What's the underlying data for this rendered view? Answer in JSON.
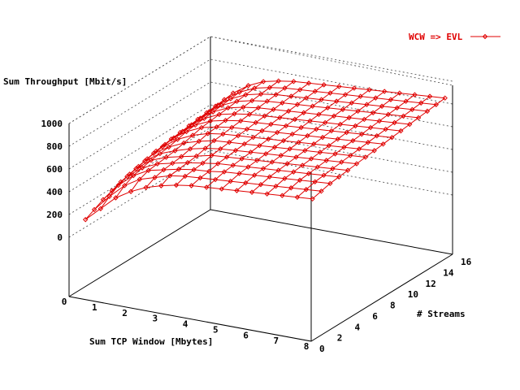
{
  "chart_data": {
    "type": "surface",
    "title": "",
    "xlabel": "Sum TCP Window [Mbytes]",
    "ylabel": "# Streams",
    "zlabel": "Sum Throughput [Mbit/s]",
    "x_ticks": [
      "0",
      "1",
      "2",
      "3",
      "4",
      "5",
      "6",
      "7",
      "8"
    ],
    "y_ticks": [
      "0",
      "2",
      "4",
      "6",
      "8",
      "10",
      "12",
      "14",
      "16"
    ],
    "z_ticks": [
      "0",
      "200",
      "400",
      "600",
      "800",
      "1000"
    ],
    "xlim": [
      0,
      8
    ],
    "ylim": [
      0,
      16
    ],
    "zlim": [
      0,
      1000
    ],
    "grid": true,
    "legend_position": "top-right",
    "series": [
      {
        "name": "WCW => EVL",
        "color": "#e00000",
        "marker": "diamond",
        "x": [
          0.25,
          0.75,
          1.25,
          1.75,
          2.25,
          2.75,
          3.25,
          3.75,
          4.25,
          4.75,
          5.25,
          5.75,
          6.25,
          6.75,
          7.25,
          7.75
        ],
        "y": [
          1,
          2,
          3,
          4,
          5,
          6,
          7,
          8,
          9,
          10,
          11,
          12,
          13,
          14,
          15,
          16
        ],
        "z": [
          [
            120,
            160,
            200,
            230,
            260,
            280,
            300,
            320,
            340,
            350,
            360,
            370,
            380,
            390,
            400,
            410
          ],
          [
            240,
            300,
            350,
            380,
            400,
            420,
            440,
            450,
            470,
            480,
            490,
            500,
            510,
            520,
            530,
            540
          ],
          [
            360,
            420,
            460,
            480,
            500,
            510,
            520,
            540,
            560,
            570,
            580,
            590,
            600,
            610,
            620,
            630
          ],
          [
            440,
            500,
            530,
            540,
            550,
            560,
            580,
            600,
            620,
            630,
            640,
            650,
            660,
            670,
            680,
            690
          ],
          [
            500,
            540,
            560,
            570,
            580,
            600,
            620,
            640,
            650,
            660,
            670,
            680,
            690,
            700,
            710,
            720
          ],
          [
            540,
            580,
            590,
            600,
            610,
            630,
            650,
            660,
            670,
            680,
            690,
            700,
            710,
            720,
            730,
            740
          ],
          [
            570,
            600,
            610,
            620,
            640,
            650,
            660,
            670,
            680,
            690,
            700,
            710,
            720,
            730,
            740,
            750
          ],
          [
            590,
            610,
            620,
            640,
            650,
            660,
            670,
            680,
            690,
            700,
            710,
            720,
            730,
            740,
            750,
            760
          ],
          [
            600,
            620,
            640,
            650,
            660,
            670,
            680,
            690,
            700,
            710,
            720,
            730,
            740,
            750,
            760,
            770
          ],
          [
            610,
            630,
            650,
            660,
            670,
            680,
            690,
            700,
            710,
            720,
            730,
            740,
            750,
            760,
            770,
            780
          ],
          [
            620,
            640,
            660,
            670,
            680,
            690,
            700,
            710,
            720,
            730,
            740,
            750,
            760,
            770,
            780,
            790
          ],
          [
            630,
            650,
            670,
            680,
            690,
            700,
            710,
            720,
            730,
            740,
            750,
            760,
            770,
            780,
            790,
            800
          ],
          [
            640,
            660,
            680,
            690,
            700,
            710,
            720,
            730,
            740,
            750,
            760,
            770,
            780,
            790,
            800,
            810
          ],
          [
            650,
            670,
            690,
            700,
            710,
            720,
            730,
            740,
            750,
            760,
            770,
            780,
            790,
            800,
            810,
            820
          ],
          [
            660,
            680,
            700,
            710,
            720,
            730,
            740,
            750,
            760,
            770,
            780,
            790,
            800,
            810,
            820,
            830
          ],
          [
            670,
            690,
            710,
            720,
            730,
            740,
            750,
            760,
            770,
            780,
            790,
            800,
            810,
            820,
            830,
            840
          ]
        ]
      }
    ]
  }
}
